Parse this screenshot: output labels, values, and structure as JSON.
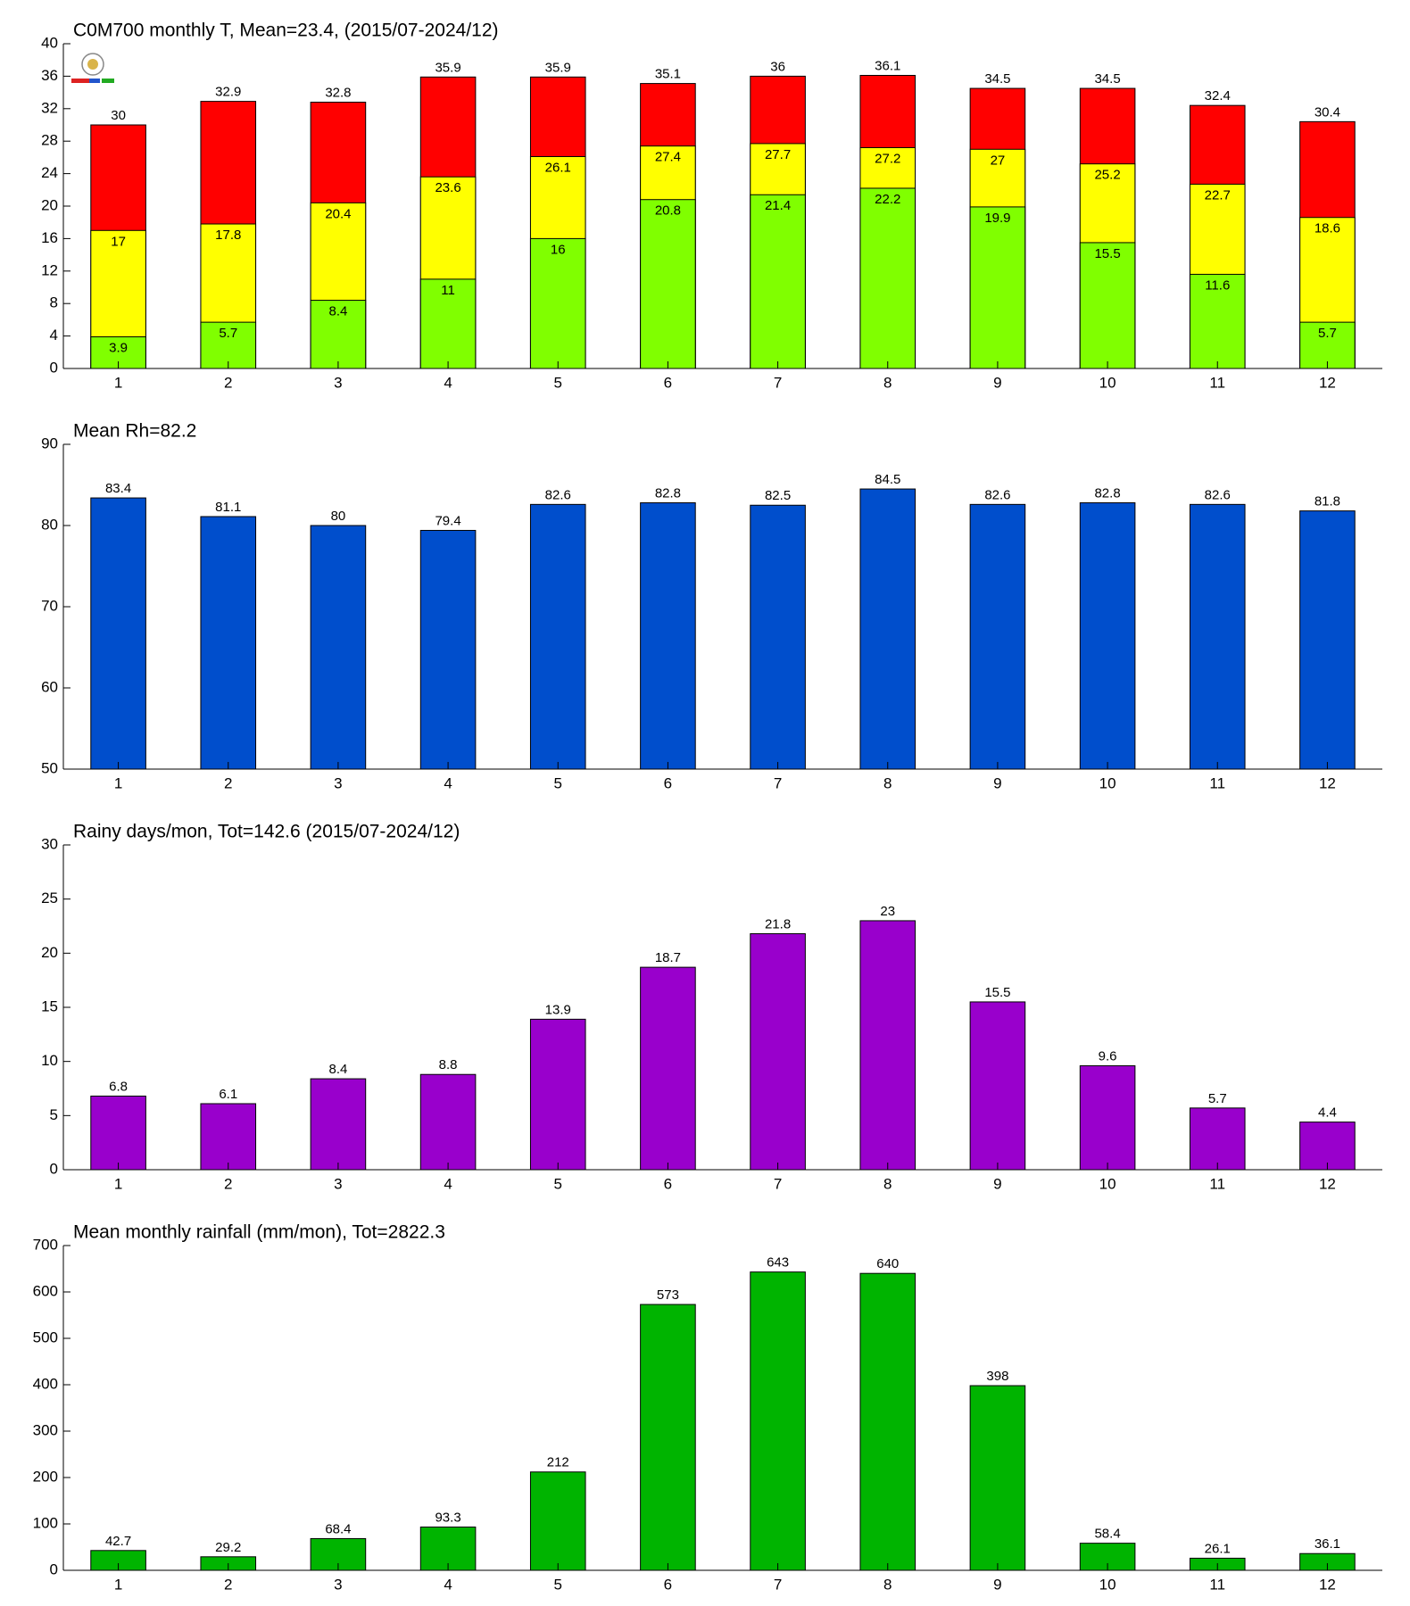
{
  "chart_data": [
    {
      "type": "bar",
      "title": "C0M700 monthly T, Mean=23.4, (2015/07-2024/12)",
      "bar_mode": "overlay",
      "categories": [
        "1",
        "2",
        "3",
        "4",
        "5",
        "6",
        "7",
        "8",
        "9",
        "10",
        "11",
        "12"
      ],
      "series": [
        {
          "color": "#ff0000",
          "values": [
            30,
            32.9,
            32.8,
            35.9,
            35.9,
            35.1,
            36,
            36.1,
            34.5,
            34.5,
            32.4,
            30.4
          ]
        },
        {
          "color": "#ffff00",
          "values": [
            17,
            17.8,
            20.4,
            23.6,
            26.1,
            27.4,
            27.7,
            27.2,
            27,
            25.2,
            22.7,
            18.6
          ]
        },
        {
          "color": "#80ff00",
          "values": [
            3.9,
            5.7,
            8.4,
            11,
            16,
            20.8,
            21.4,
            22.2,
            19.9,
            15.5,
            11.6,
            5.7
          ]
        }
      ],
      "ylim": [
        0,
        40
      ],
      "yticks": [
        0,
        4,
        8,
        12,
        16,
        20,
        24,
        28,
        32,
        36,
        40
      ]
    },
    {
      "type": "bar",
      "title": "Mean Rh=82.2",
      "categories": [
        "1",
        "2",
        "3",
        "4",
        "5",
        "6",
        "7",
        "8",
        "9",
        "10",
        "11",
        "12"
      ],
      "series": [
        {
          "color": "#004ecc",
          "values": [
            83.4,
            81.1,
            80,
            79.4,
            82.6,
            82.8,
            82.5,
            84.5,
            82.6,
            82.8,
            82.6,
            81.8
          ]
        }
      ],
      "ylim": [
        50,
        90
      ],
      "yticks": [
        50,
        60,
        70,
        80,
        90
      ]
    },
    {
      "type": "bar",
      "title": "Rainy days/mon, Tot=142.6 (2015/07-2024/12)",
      "categories": [
        "1",
        "2",
        "3",
        "4",
        "5",
        "6",
        "7",
        "8",
        "9",
        "10",
        "11",
        "12"
      ],
      "series": [
        {
          "color": "#9900cc",
          "values": [
            6.8,
            6.1,
            8.4,
            8.8,
            13.9,
            18.7,
            21.8,
            23,
            15.5,
            9.6,
            5.7,
            4.4
          ]
        }
      ],
      "ylim": [
        0,
        30
      ],
      "yticks": [
        0,
        5,
        10,
        15,
        20,
        25,
        30
      ]
    },
    {
      "type": "bar",
      "title": "Mean monthly rainfall (mm/mon), Tot=2822.3",
      "categories": [
        "1",
        "2",
        "3",
        "4",
        "5",
        "6",
        "7",
        "8",
        "9",
        "10",
        "11",
        "12"
      ],
      "series": [
        {
          "color": "#00b400",
          "values": [
            42.7,
            29.2,
            68.4,
            93.3,
            212,
            573,
            643,
            640,
            398,
            58.4,
            26.1,
            36.1
          ]
        }
      ],
      "ylim": [
        0,
        700
      ],
      "yticks": [
        0,
        100,
        200,
        300,
        400,
        500,
        600,
        700
      ]
    }
  ]
}
